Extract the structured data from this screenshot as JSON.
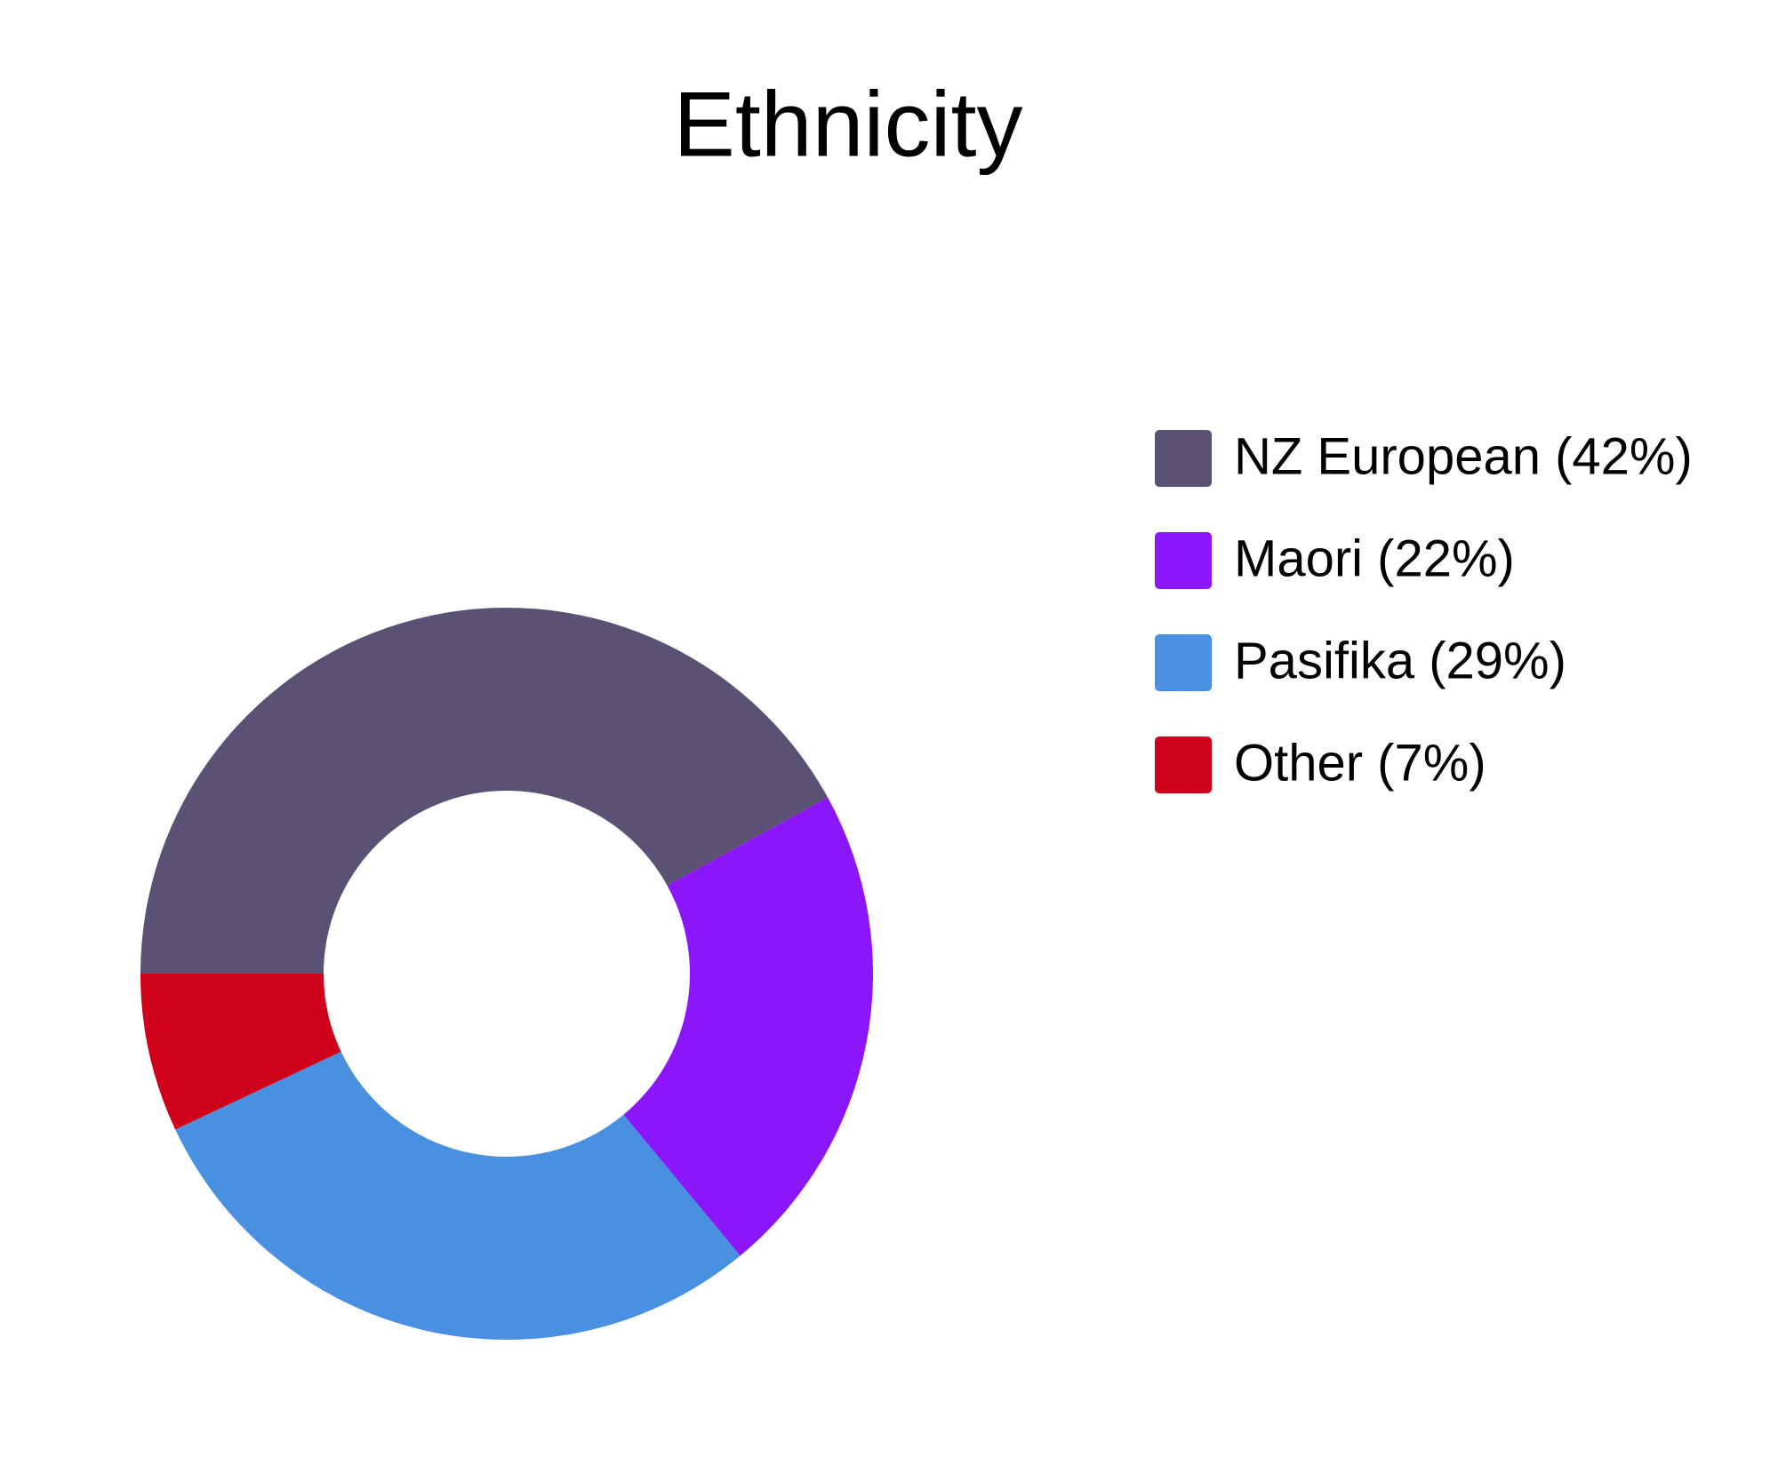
{
  "chart_data": {
    "type": "donut",
    "title": "Ethnicity",
    "categories": [
      "NZ European (42%)",
      "Maori (22%)",
      "Pasifika (29%)",
      "Other (7%)"
    ],
    "values": [
      42,
      22,
      29,
      7
    ],
    "colors": [
      "#5b5174",
      "#8b16f9",
      "#4a90e0",
      "#d0021b"
    ],
    "legend": "right"
  }
}
